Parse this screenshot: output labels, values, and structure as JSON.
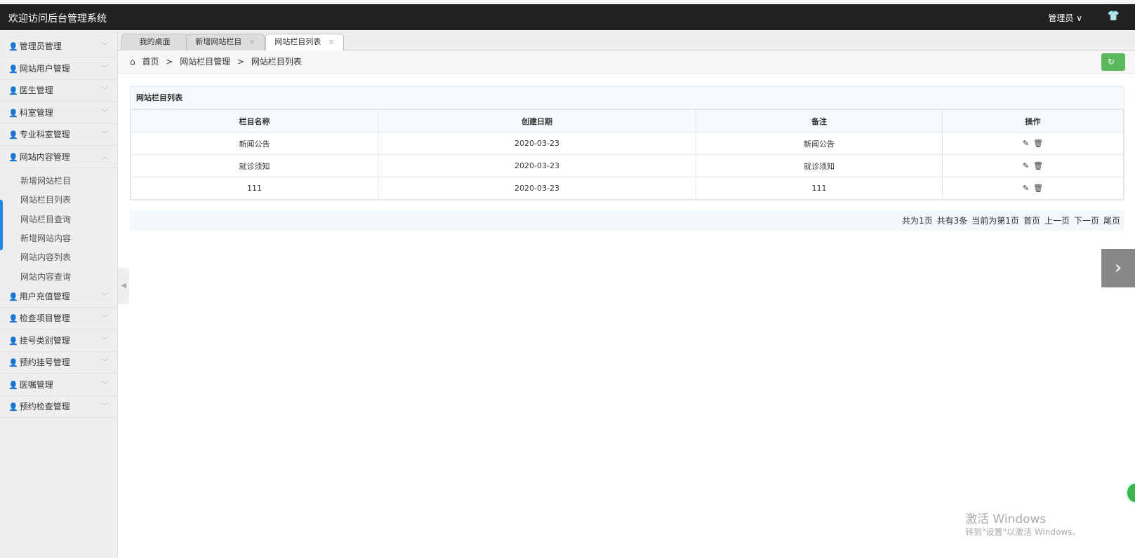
{
  "header": {
    "title": "欢迎访问后台管理系统",
    "user": "管理员 ∨",
    "theme_icon": "tshirt-icon"
  },
  "sidebar": {
    "menus": [
      {
        "label": "管理员管理",
        "open": false
      },
      {
        "label": "网站用户管理",
        "open": false
      },
      {
        "label": "医生管理",
        "open": false
      },
      {
        "label": "科室管理",
        "open": false
      },
      {
        "label": "专业科室管理",
        "open": false
      },
      {
        "label": "网站内容管理",
        "open": true
      },
      {
        "label": "用户充值管理",
        "open": false
      },
      {
        "label": "检查项目管理",
        "open": false
      },
      {
        "label": "挂号类别管理",
        "open": false
      },
      {
        "label": "预约挂号管理",
        "open": false
      },
      {
        "label": "医嘱管理",
        "open": false
      },
      {
        "label": "预约检查管理",
        "open": false
      }
    ],
    "submenu": [
      "新增网站栏目",
      "网站栏目列表",
      "网站栏目查询",
      "新增网站内容",
      "网站内容列表",
      "网站内容查询"
    ]
  },
  "tabs": [
    {
      "label": "我的桌面"
    },
    {
      "label": "新增网站栏目"
    },
    {
      "label": "网站栏目列表",
      "active": true
    }
  ],
  "breadcrumb": [
    "首页",
    ">",
    "网站栏目管理",
    ">",
    "网站栏目列表"
  ],
  "panel": {
    "title": "网站栏目列表",
    "columns": [
      "栏目名称",
      "创建日期",
      "备注",
      "操作"
    ],
    "rows": [
      [
        "新闻公告",
        "2020-03-23",
        "新闻公告"
      ],
      [
        "就诊须知",
        "2020-03-23",
        "就诊须知"
      ],
      [
        "111",
        "2020-03-23",
        "111"
      ]
    ]
  },
  "pager": [
    "共为1页",
    "共有3条",
    "当前为第1页",
    "首页",
    "上一页",
    "下一页",
    "尾页"
  ],
  "watermark": {
    "line1": "激活 Windows",
    "line2": "转到\"设置\"以激活 Windows。"
  },
  "colors": {
    "topbar": "#222222",
    "refresh": "#5cb85c",
    "active_indicator": "#1e88e5"
  }
}
